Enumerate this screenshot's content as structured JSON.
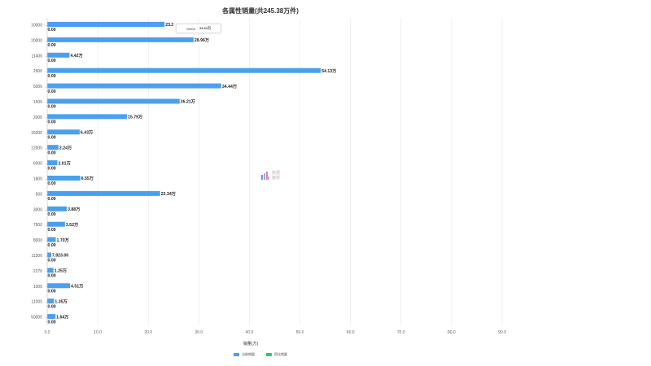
{
  "chart_data": {
    "type": "bar",
    "orientation": "horizontal",
    "title": "各属性销量(共245.38万件)",
    "xlabel": "销量(万)",
    "xlim": [
      0,
      90
    ],
    "xticks": [
      "0.0",
      "10.0",
      "20.0",
      "30.0",
      "40.0",
      "50.0",
      "60.0",
      "70.0",
      "80.0",
      "90.0"
    ],
    "grid": true,
    "legend_position": "bottom",
    "categories": [
      "10000",
      "20000",
      "11400",
      "2500",
      "5000",
      "1500",
      "2000",
      "15000",
      "12000",
      "6000",
      "1800",
      "500",
      "3000",
      "7500",
      "8000",
      "11300",
      "2270",
      "1000",
      "11000",
      "50000"
    ],
    "series": [
      {
        "name": "当前销量",
        "color": "#4a9fef",
        "values": [
          23.22,
          28.96,
          4.42,
          54.13,
          34.44,
          26.21,
          15.79,
          6.43,
          2.24,
          2.01,
          6.55,
          22.34,
          3.88,
          3.52,
          1.7,
          0.7923,
          1.25,
          4.51,
          1.35,
          1.64
        ],
        "labels": [
          "23.2",
          "28.96万",
          "4.42万",
          "54.13万",
          "34.44万",
          "26.21万",
          "15.79万",
          "6.43万",
          "2.24万",
          "2.01万",
          "6.55万",
          "22.34万",
          "3.88万",
          "3.52万",
          "1.70万",
          "7,923.00",
          "1.25万",
          "4.51万",
          "1.35万",
          "1.64万"
        ]
      },
      {
        "name": "同比销量",
        "color": "#3fc17a",
        "values": [
          0,
          0,
          0,
          0,
          0,
          0,
          0,
          0,
          0,
          0,
          0,
          0,
          0,
          0,
          0,
          0,
          0,
          0,
          0,
          0
        ],
        "labels": [
          "0.00",
          "0.00",
          "0.00",
          "0.00",
          "0.00",
          "0.00",
          "0.00",
          "0.00",
          "0.00",
          "0.00",
          "0.00",
          "0.00",
          "0.00",
          "0.00",
          "0.00",
          "0.00",
          "0.00",
          "0.00",
          "0.00",
          "0.00"
        ]
      }
    ],
    "tooltip": {
      "category": "10000",
      "separator": ":",
      "value": "23.22万"
    }
  },
  "watermark": {
    "line1": "数据",
    "line2": "魔镜",
    "line3": "魔镜"
  }
}
